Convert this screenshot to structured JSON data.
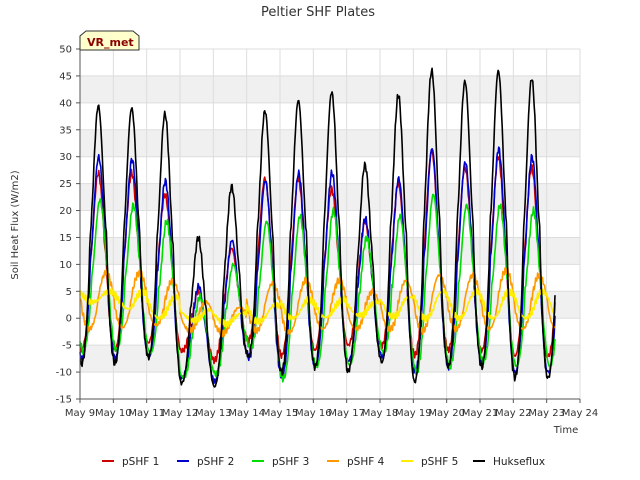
{
  "chart_data": {
    "type": "line",
    "title": "Peltier SHF Plates",
    "xlabel": "Time",
    "ylabel": "Soil Heat Flux (W/m2)",
    "ylim": [
      -15,
      50
    ],
    "y_ticks": [
      -15,
      -10,
      -5,
      0,
      5,
      10,
      15,
      20,
      25,
      30,
      35,
      40,
      45,
      50
    ],
    "xlim": [
      9,
      24
    ],
    "x_ticks": [
      9,
      10,
      11,
      12,
      13,
      14,
      15,
      16,
      17,
      18,
      19,
      20,
      21,
      22,
      23,
      24
    ],
    "x_tick_labels": [
      "May 9",
      "May 10",
      "May 11",
      "May 12",
      "May 13",
      "May 14",
      "May 15",
      "May 16",
      "May 17",
      "May 18",
      "May 19",
      "May 20",
      "May 21",
      "May 22",
      "May 23",
      "May 24"
    ],
    "x_data_range": [
      9.0,
      23.25
    ],
    "site_label": "VR_met",
    "legend_position": "bottom",
    "series": [
      {
        "name": "pSHF 1",
        "color": "#cc0000",
        "phase": 0.55,
        "daily_max": [
          27,
          27,
          23,
          5,
          13,
          26,
          26,
          24,
          18,
          25,
          31,
          28,
          30,
          28
        ],
        "daily_min": [
          -6,
          -4.5,
          -6,
          -8,
          -4,
          -7,
          -6,
          -5,
          -5,
          -7,
          -6,
          -6,
          -7,
          -8
        ]
      },
      {
        "name": "pSHF 2",
        "color": "#0000cc",
        "phase": 0.56,
        "daily_max": [
          30,
          29.5,
          25.5,
          6,
          14.5,
          25.5,
          27,
          27,
          18.5,
          26,
          31.5,
          29,
          31.5,
          30
        ],
        "daily_min": [
          -7.5,
          -7,
          -11,
          -12,
          -7,
          -11,
          -9,
          -8,
          -7,
          -10,
          -9,
          -8,
          -10,
          -11
        ]
      },
      {
        "name": "pSHF 3",
        "color": "#00dd00",
        "phase": 0.6,
        "daily_max": [
          22,
          21,
          18,
          4,
          10,
          18,
          19,
          20,
          15,
          19,
          23,
          21,
          21,
          20
        ],
        "daily_min": [
          -6,
          -6,
          -11,
          -11,
          -5,
          -11.5,
          -9,
          -9,
          -6,
          -10,
          -9,
          -8,
          -9,
          -8
        ]
      },
      {
        "name": "pSHF 4",
        "color": "#ff9900",
        "phase": 0.78,
        "daily_max": [
          8.5,
          8.5,
          7,
          3,
          2,
          6.5,
          7,
          7,
          5,
          7,
          8,
          8,
          9,
          8
        ],
        "daily_min": [
          -2,
          -1,
          -2,
          -3,
          -2,
          -3,
          -2,
          -2,
          -2,
          -2.5,
          -2,
          -2,
          -2,
          -2
        ]
      },
      {
        "name": "pSHF 5",
        "color": "#ffee00",
        "phase": 0.88,
        "daily_max": [
          5,
          5,
          4,
          1.5,
          1,
          2.5,
          3.5,
          3.5,
          3,
          4,
          5,
          5,
          5,
          5
        ],
        "daily_min": [
          3,
          0,
          0,
          -1,
          -1,
          0,
          0,
          0.5,
          0.5,
          0,
          0,
          0,
          0,
          0
        ]
      },
      {
        "name": "Hukseflux",
        "color": "#000000",
        "phase": 0.55,
        "daily_max": [
          39.5,
          39,
          38,
          15,
          24.5,
          38.5,
          40.5,
          42,
          28.5,
          41.5,
          46,
          44,
          46,
          44.5
        ],
        "daily_min": [
          -8.5,
          -7,
          -12,
          -13,
          -7,
          -10,
          -9,
          -10,
          -8,
          -12,
          -9,
          -9,
          -11,
          -12
        ]
      }
    ]
  }
}
